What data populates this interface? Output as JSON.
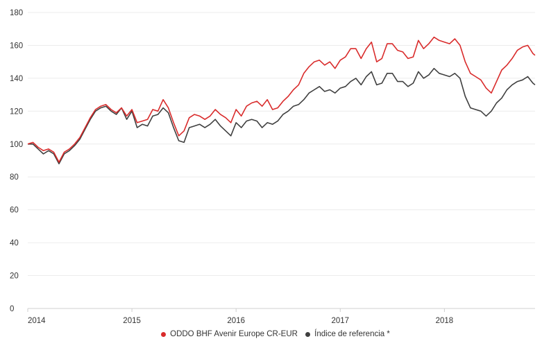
{
  "chart_data": {
    "type": "line",
    "title": "",
    "xlabel": "",
    "ylabel": "",
    "ylim": [
      0,
      180
    ],
    "yticks": [
      0,
      20,
      40,
      60,
      80,
      100,
      120,
      140,
      160,
      180
    ],
    "xlim": [
      2014.0,
      2018.87
    ],
    "xticks": [
      2014,
      2015,
      2016,
      2017,
      2018
    ],
    "xtick_labels": [
      "2014",
      "2015",
      "2016",
      "2017",
      "2018"
    ],
    "grid": "horizontal",
    "legend_position": "bottom-center",
    "series": [
      {
        "name": "ODDO BHF Avenir Europe CR-EUR",
        "color": "#d92b2b",
        "x": [
          2014.0,
          2014.05,
          2014.1,
          2014.15,
          2014.2,
          2014.25,
          2014.3,
          2014.35,
          2014.4,
          2014.45,
          2014.5,
          2014.55,
          2014.6,
          2014.65,
          2014.7,
          2014.75,
          2014.8,
          2014.85,
          2014.9,
          2014.95,
          2015.0,
          2015.05,
          2015.1,
          2015.15,
          2015.2,
          2015.25,
          2015.3,
          2015.35,
          2015.4,
          2015.45,
          2015.5,
          2015.55,
          2015.6,
          2015.65,
          2015.7,
          2015.75,
          2015.8,
          2015.85,
          2015.9,
          2015.95,
          2016.0,
          2016.05,
          2016.1,
          2016.15,
          2016.2,
          2016.25,
          2016.3,
          2016.35,
          2016.4,
          2016.45,
          2016.5,
          2016.55,
          2016.6,
          2016.65,
          2016.7,
          2016.75,
          2016.8,
          2016.85,
          2016.9,
          2016.95,
          2017.0,
          2017.05,
          2017.1,
          2017.15,
          2017.2,
          2017.25,
          2017.3,
          2017.35,
          2017.4,
          2017.45,
          2017.5,
          2017.55,
          2017.6,
          2017.65,
          2017.7,
          2017.75,
          2017.8,
          2017.85,
          2017.9,
          2017.95,
          2018.0,
          2018.05,
          2018.1,
          2018.15,
          2018.2,
          2018.25,
          2018.3,
          2018.35,
          2018.4,
          2018.45,
          2018.5,
          2018.55,
          2018.6,
          2018.65,
          2018.7,
          2018.75,
          2018.8,
          2018.85,
          2018.87
        ],
        "values": [
          100,
          101,
          98,
          96,
          97,
          95,
          89,
          95,
          97,
          100,
          104,
          110,
          116,
          121,
          123,
          124,
          121,
          119,
          122,
          117,
          121,
          113,
          114,
          115,
          121,
          120,
          127,
          122,
          113,
          105,
          108,
          116,
          118,
          117,
          115,
          117,
          121,
          118,
          116,
          113,
          121,
          117,
          123,
          125,
          126,
          123,
          127,
          121,
          122,
          126,
          129,
          133,
          136,
          143,
          147,
          150,
          151,
          148,
          150,
          146,
          151,
          153,
          158,
          158,
          152,
          158,
          162,
          150,
          152,
          161,
          161,
          157,
          156,
          152,
          153,
          163,
          158,
          161,
          165,
          163,
          162,
          161,
          164,
          160,
          150,
          143,
          141,
          139,
          134,
          131,
          138,
          145,
          148,
          152,
          157,
          159,
          160,
          155,
          154
        ]
      },
      {
        "name": "Índice de referencia *",
        "color": "#3f3f3f",
        "x": [
          2014.0,
          2014.05,
          2014.1,
          2014.15,
          2014.2,
          2014.25,
          2014.3,
          2014.35,
          2014.4,
          2014.45,
          2014.5,
          2014.55,
          2014.6,
          2014.65,
          2014.7,
          2014.75,
          2014.8,
          2014.85,
          2014.9,
          2014.95,
          2015.0,
          2015.05,
          2015.1,
          2015.15,
          2015.2,
          2015.25,
          2015.3,
          2015.35,
          2015.4,
          2015.45,
          2015.5,
          2015.55,
          2015.6,
          2015.65,
          2015.7,
          2015.75,
          2015.8,
          2015.85,
          2015.9,
          2015.95,
          2016.0,
          2016.05,
          2016.1,
          2016.15,
          2016.2,
          2016.25,
          2016.3,
          2016.35,
          2016.4,
          2016.45,
          2016.5,
          2016.55,
          2016.6,
          2016.65,
          2016.7,
          2016.75,
          2016.8,
          2016.85,
          2016.9,
          2016.95,
          2017.0,
          2017.05,
          2017.1,
          2017.15,
          2017.2,
          2017.25,
          2017.3,
          2017.35,
          2017.4,
          2017.45,
          2017.5,
          2017.55,
          2017.6,
          2017.65,
          2017.7,
          2017.75,
          2017.8,
          2017.85,
          2017.9,
          2017.95,
          2018.0,
          2018.05,
          2018.1,
          2018.15,
          2018.2,
          2018.25,
          2018.3,
          2018.35,
          2018.4,
          2018.45,
          2018.5,
          2018.55,
          2018.6,
          2018.65,
          2018.7,
          2018.75,
          2018.8,
          2018.85,
          2018.87
        ],
        "values": [
          100,
          100,
          97,
          94,
          96,
          94,
          88,
          94,
          96,
          99,
          103,
          109,
          115,
          120,
          122,
          123,
          120,
          118,
          122,
          115,
          120,
          110,
          112,
          111,
          117,
          118,
          122,
          119,
          110,
          102,
          101,
          110,
          111,
          112,
          110,
          112,
          115,
          111,
          108,
          105,
          113,
          110,
          114,
          115,
          114,
          110,
          113,
          112,
          114,
          118,
          120,
          123,
          124,
          127,
          131,
          133,
          135,
          132,
          133,
          131,
          134,
          135,
          138,
          140,
          136,
          141,
          144,
          136,
          137,
          143,
          143,
          138,
          138,
          135,
          137,
          144,
          140,
          142,
          146,
          143,
          142,
          141,
          143,
          140,
          129,
          122,
          121,
          120,
          117,
          120,
          125,
          128,
          133,
          136,
          138,
          139,
          141,
          137,
          136
        ]
      }
    ]
  }
}
